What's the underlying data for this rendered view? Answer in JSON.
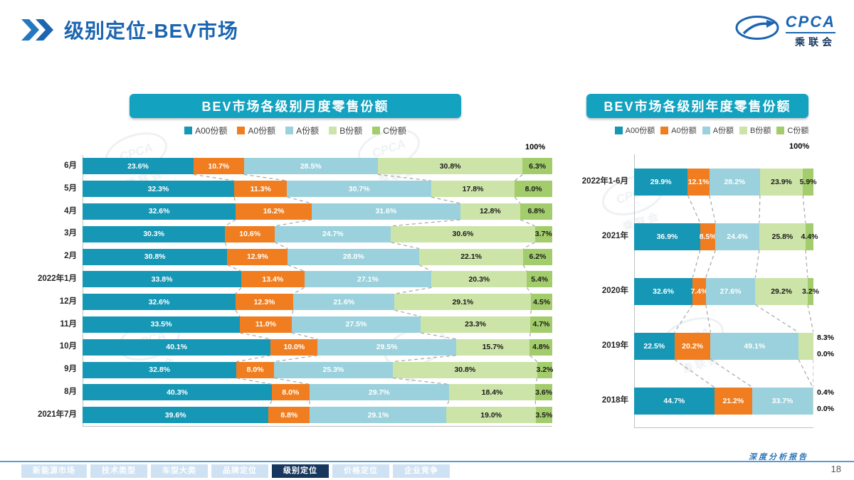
{
  "header": {
    "title": "级别定位-BEV市场",
    "logo": {
      "abbr": "CPCA",
      "cn": "乘联会"
    }
  },
  "colors": {
    "segments": [
      "#1697b5",
      "#f07e20",
      "#9ad1dc",
      "#cde4a9",
      "#a3cd6c"
    ],
    "banner": "#13a2c0",
    "accent_blue": "#1b65b1",
    "active_tab": "#17375e"
  },
  "legend": [
    "A00份额",
    "A0份额",
    "A份额",
    "B份额",
    "C份额"
  ],
  "watermark": {
    "abbr": "CPCA",
    "cn": "乘联会"
  },
  "chart_data": [
    {
      "type": "bar",
      "orientation": "horizontal-stacked",
      "title": "BEV市场各级别月度零售份额",
      "axis_top_label": "100%",
      "xlim": [
        0,
        100
      ],
      "series_names": [
        "A00份额",
        "A0份额",
        "A份额",
        "B份额",
        "C份额"
      ],
      "rows": [
        {
          "label": "6月",
          "values": [
            23.6,
            10.7,
            28.5,
            30.8,
            6.3
          ]
        },
        {
          "label": "5月",
          "values": [
            32.3,
            11.3,
            30.7,
            17.8,
            8.0
          ]
        },
        {
          "label": "4月",
          "values": [
            32.6,
            16.2,
            31.6,
            12.8,
            6.8
          ]
        },
        {
          "label": "3月",
          "values": [
            30.3,
            10.6,
            24.7,
            30.6,
            3.7
          ]
        },
        {
          "label": "2月",
          "values": [
            30.8,
            12.9,
            28.0,
            22.1,
            6.2
          ]
        },
        {
          "label": "2022年1月",
          "values": [
            33.8,
            13.4,
            27.1,
            20.3,
            5.4
          ]
        },
        {
          "label": "12月",
          "values": [
            32.6,
            12.3,
            21.6,
            29.1,
            4.5
          ]
        },
        {
          "label": "11月",
          "values": [
            33.5,
            11.0,
            27.5,
            23.3,
            4.7
          ]
        },
        {
          "label": "10月",
          "values": [
            40.1,
            10.0,
            29.5,
            15.7,
            4.8
          ]
        },
        {
          "label": "9月",
          "values": [
            32.8,
            8.0,
            25.3,
            30.8,
            3.2
          ]
        },
        {
          "label": "8月",
          "values": [
            40.3,
            8.0,
            29.7,
            18.4,
            3.6
          ]
        },
        {
          "label": "2021年7月",
          "values": [
            39.6,
            8.8,
            29.1,
            19.0,
            3.5
          ]
        }
      ]
    },
    {
      "type": "bar",
      "orientation": "horizontal-stacked",
      "title": "BEV市场各级别年度零售份额",
      "axis_top_label": "100%",
      "xlim": [
        0,
        100
      ],
      "series_names": [
        "A00份额",
        "A0份额",
        "A份额",
        "B份额",
        "C份额"
      ],
      "rows": [
        {
          "label": "2022年1-6月",
          "values": [
            29.9,
            12.1,
            28.2,
            23.9,
            5.9
          ]
        },
        {
          "label": "2021年",
          "values": [
            36.9,
            8.5,
            24.4,
            25.8,
            4.4
          ]
        },
        {
          "label": "2020年",
          "values": [
            32.6,
            7.4,
            27.6,
            29.2,
            3.2
          ]
        },
        {
          "label": "2019年",
          "values": [
            22.5,
            20.2,
            49.1,
            8.3,
            0.0
          ],
          "outside_last_two": true
        },
        {
          "label": "2018年",
          "values": [
            44.7,
            21.2,
            33.7,
            0.4,
            0.0
          ],
          "outside_last_two": true
        }
      ]
    }
  ],
  "footer": {
    "tabs": [
      "新能源市场",
      "技术类型",
      "车型大类",
      "品牌定位",
      "级别定位",
      "价格定位",
      "企业竞争"
    ],
    "active_tab": "级别定位",
    "report_label": "深度分析报告",
    "page_number": "18"
  }
}
